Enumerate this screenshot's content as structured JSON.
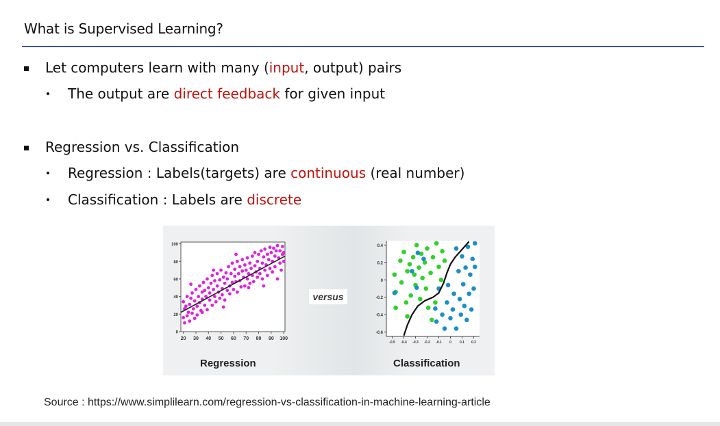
{
  "slide": {
    "title": "What is Supervised Learning?",
    "bullets": [
      {
        "parts": [
          "Let computers learn with many (",
          "input",
          ", output) pairs"
        ],
        "sub": [
          {
            "parts": [
              "The output are ",
              "direct feedback",
              " for given input"
            ]
          }
        ]
      },
      {
        "parts": [
          "Regression vs. Classification"
        ],
        "sub": [
          {
            "parts": [
              "Regression : Labels(targets) are ",
              "continuous",
              " (real number)"
            ]
          },
          {
            "parts": [
              "Classification : Labels are ",
              "discrete",
              ""
            ]
          }
        ]
      }
    ],
    "source": "Source : https://www.simplilearn.com/regression-vs-classification-in-machine-learning-article",
    "colors": {
      "accent_rule": "#3b4fb8",
      "highlight_red": "#c0120c"
    }
  },
  "figure": {
    "versus_label": "versus",
    "regression_label": "Regression",
    "classification_label": "Classification"
  },
  "chart_data": [
    {
      "type": "scatter",
      "title": "Regression",
      "x_ticks": [
        "20",
        "30",
        "40",
        "50",
        "60",
        "70",
        "80",
        "90",
        "100"
      ],
      "y_ticks": [
        "0",
        "20",
        "40",
        "60",
        "80",
        "100"
      ],
      "xlim": [
        18,
        101
      ],
      "ylim": [
        0,
        102
      ],
      "point_color": "#e21ee0",
      "line_color": "#222222",
      "fit_line": [
        [
          18,
          22
        ],
        [
          101,
          86
        ]
      ],
      "series": [
        {
          "values": [
            [
              20,
              16
            ],
            [
              20,
              34
            ],
            [
              21,
              26
            ],
            [
              21,
              10
            ],
            [
              22,
              29
            ],
            [
              23,
              18
            ],
            [
              23,
              40
            ],
            [
              24,
              22
            ],
            [
              25,
              12
            ],
            [
              25,
              31
            ],
            [
              26,
              38
            ],
            [
              27,
              21
            ],
            [
              27,
              44
            ],
            [
              28,
              26
            ],
            [
              29,
              15
            ],
            [
              29,
              35
            ],
            [
              30,
              48
            ],
            [
              31,
              29
            ],
            [
              31,
              19
            ],
            [
              32,
              40
            ],
            [
              33,
              33
            ],
            [
              33,
              52
            ],
            [
              34,
              24
            ],
            [
              35,
              45
            ],
            [
              35,
              37
            ],
            [
              36,
              56
            ],
            [
              37,
              30
            ],
            [
              37,
              47
            ],
            [
              38,
              40
            ],
            [
              39,
              25
            ],
            [
              39,
              60
            ],
            [
              40,
              50
            ],
            [
              41,
              36
            ],
            [
              41,
              44
            ],
            [
              42,
              55
            ],
            [
              43,
              30
            ],
            [
              43,
              64
            ],
            [
              44,
              48
            ],
            [
              45,
              40
            ],
            [
              45,
              58
            ],
            [
              46,
              34
            ],
            [
              47,
              52
            ],
            [
              47,
              66
            ],
            [
              48,
              45
            ],
            [
              49,
              38
            ],
            [
              49,
              59
            ],
            [
              50,
              70
            ],
            [
              51,
              49
            ],
            [
              51,
              42
            ],
            [
              52,
              62
            ],
            [
              53,
              55
            ],
            [
              53,
              36
            ],
            [
              54,
              67
            ],
            [
              55,
              47
            ],
            [
              55,
              60
            ],
            [
              56,
              74
            ],
            [
              57,
              52
            ],
            [
              57,
              43
            ],
            [
              58,
              66
            ],
            [
              59,
              56
            ],
            [
              59,
              78
            ],
            [
              60,
              48
            ],
            [
              61,
              63
            ],
            [
              61,
              71
            ],
            [
              62,
              57
            ],
            [
              63,
              80
            ],
            [
              63,
              45
            ],
            [
              64,
              66
            ],
            [
              65,
              58
            ],
            [
              65,
              74
            ],
            [
              66,
              51
            ],
            [
              67,
              69
            ],
            [
              67,
              82
            ],
            [
              68,
              62
            ],
            [
              69,
              76
            ],
            [
              69,
              52
            ],
            [
              70,
              70
            ],
            [
              71,
              84
            ],
            [
              71,
              60
            ],
            [
              72,
              66
            ],
            [
              73,
              78
            ],
            [
              73,
              55
            ],
            [
              74,
              72
            ],
            [
              75,
              86
            ],
            [
              75,
              64
            ],
            [
              76,
              57
            ],
            [
              77,
              75
            ],
            [
              77,
              90
            ],
            [
              78,
              68
            ],
            [
              79,
              80
            ],
            [
              79,
              62
            ],
            [
              80,
              88
            ],
            [
              81,
              72
            ],
            [
              81,
              66
            ],
            [
              82,
              92
            ],
            [
              83,
              78
            ],
            [
              83,
              60
            ],
            [
              84,
              85
            ],
            [
              85,
              70
            ],
            [
              85,
              94
            ],
            [
              86,
              76
            ],
            [
              87,
              64
            ],
            [
              87,
              88
            ],
            [
              88,
              82
            ],
            [
              89,
              96
            ],
            [
              89,
              72
            ],
            [
              90,
              90
            ],
            [
              91,
              68
            ],
            [
              91,
              80
            ],
            [
              92,
              95
            ],
            [
              93,
              86
            ],
            [
              93,
              74
            ],
            [
              94,
              92
            ],
            [
              95,
              60
            ],
            [
              95,
              98
            ],
            [
              96,
              84
            ],
            [
              97,
              78
            ],
            [
              97,
              92
            ],
            [
              98,
              70
            ],
            [
              99,
              88
            ],
            [
              99,
              97
            ],
            [
              100,
              80
            ],
            [
              100,
              90
            ],
            [
              26,
              54
            ],
            [
              35,
              22
            ],
            [
              44,
              70
            ],
            [
              52,
              28
            ],
            [
              62,
              88
            ],
            [
              72,
              50
            ],
            [
              84,
              52
            ]
          ]
        }
      ]
    },
    {
      "type": "scatter",
      "title": "Classification",
      "x_ticks": [
        "-0.5",
        "-0.4",
        "-0.3",
        "-0.2",
        "-0.1",
        "0",
        "0.1",
        "0.2"
      ],
      "y_ticks": [
        "0.4",
        "0.2",
        "0",
        "-0.2",
        "-0.4",
        "-0.6"
      ],
      "xlim": [
        -0.55,
        0.25
      ],
      "ylim": [
        -0.65,
        0.45
      ],
      "boundary_color": "#111111",
      "series": [
        {
          "color": "#2fd12a",
          "values": [
            [
              -0.48,
              0.06
            ],
            [
              -0.47,
              -0.14
            ],
            [
              -0.47,
              -0.32
            ],
            [
              -0.43,
              0.22
            ],
            [
              -0.42,
              -0.03
            ],
            [
              -0.4,
              0.32
            ],
            [
              -0.38,
              -0.26
            ],
            [
              -0.37,
              0.1
            ],
            [
              -0.37,
              -0.42
            ],
            [
              -0.35,
              0.18
            ],
            [
              -0.34,
              -0.18
            ],
            [
              -0.32,
              0.26
            ],
            [
              -0.31,
              0.06
            ],
            [
              -0.3,
              -0.06
            ],
            [
              -0.29,
              0.4
            ],
            [
              -0.27,
              0.14
            ],
            [
              -0.26,
              -0.22
            ],
            [
              -0.25,
              0.3
            ],
            [
              -0.24,
              0.02
            ],
            [
              -0.22,
              0.2
            ],
            [
              -0.21,
              -0.1
            ],
            [
              -0.2,
              0.36
            ],
            [
              -0.19,
              -0.32
            ],
            [
              -0.17,
              0.08
            ],
            [
              -0.16,
              -0.46
            ],
            [
              -0.15,
              0.26
            ],
            [
              -0.13,
              -0.26
            ],
            [
              -0.12,
              0.42
            ],
            [
              -0.1,
              0.15
            ],
            [
              -0.08,
              0.0
            ],
            [
              -0.07,
              0.33
            ],
            [
              -0.05,
              0.22
            ]
          ]
        },
        {
          "color": "#1a8fc5",
          "values": [
            [
              -0.48,
              -0.15
            ],
            [
              -0.33,
              0.1
            ],
            [
              -0.29,
              -0.09
            ],
            [
              -0.28,
              0.31
            ],
            [
              -0.23,
              0.24
            ],
            [
              -0.13,
              -0.33
            ],
            [
              -0.12,
              -0.48
            ],
            [
              -0.1,
              -0.1
            ],
            [
              -0.07,
              -0.4
            ],
            [
              -0.05,
              -0.56
            ],
            [
              -0.03,
              -0.26
            ],
            [
              -0.02,
              -0.06
            ],
            [
              0.0,
              -0.44
            ],
            [
              0.02,
              -0.34
            ],
            [
              0.03,
              -0.16
            ],
            [
              0.05,
              0.36
            ],
            [
              0.05,
              -0.56
            ],
            [
              0.07,
              0.1
            ],
            [
              0.08,
              -0.22
            ],
            [
              0.09,
              -0.4
            ],
            [
              0.1,
              0.27
            ],
            [
              0.11,
              -0.05
            ],
            [
              0.12,
              -0.3
            ],
            [
              0.13,
              0.14
            ],
            [
              0.14,
              -0.46
            ],
            [
              0.15,
              0.38
            ],
            [
              0.16,
              -0.16
            ],
            [
              0.17,
              0.06
            ],
            [
              0.18,
              -0.34
            ],
            [
              0.19,
              0.24
            ],
            [
              0.2,
              -0.1
            ],
            [
              0.21,
              0.42
            ],
            [
              0.21,
              0.15
            ]
          ]
        }
      ],
      "boundary": [
        [
          -0.4,
          -0.64
        ],
        [
          -0.37,
          -0.52
        ],
        [
          -0.33,
          -0.4
        ],
        [
          -0.28,
          -0.3
        ],
        [
          -0.22,
          -0.24
        ],
        [
          -0.15,
          -0.2
        ],
        [
          -0.1,
          -0.15
        ],
        [
          -0.06,
          -0.04
        ],
        [
          -0.03,
          0.08
        ],
        [
          0.0,
          0.18
        ],
        [
          0.04,
          0.26
        ],
        [
          0.08,
          0.32
        ],
        [
          0.12,
          0.38
        ],
        [
          0.16,
          0.44
        ]
      ]
    }
  ]
}
